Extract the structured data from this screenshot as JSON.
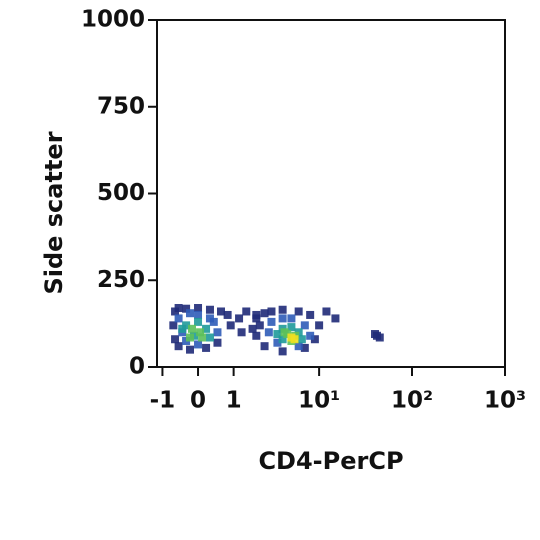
{
  "chart_data": {
    "type": "scatter",
    "xlabel": "CD4-PerCP",
    "ylabel": "Side scatter",
    "xscale": "asinh",
    "xlim": [
      -1.2,
      1000
    ],
    "ylim": [
      0,
      1000
    ],
    "xticks": [
      -1,
      0,
      1,
      {
        "value": 10,
        "label": "10¹"
      },
      {
        "value": 100,
        "label": "10²"
      },
      {
        "value": 1000,
        "label": "10³"
      }
    ],
    "yticks": [
      0,
      250,
      500,
      750,
      1000
    ],
    "series": [
      {
        "color": "#1f2a78",
        "x": [
          -0.6,
          -0.5,
          -0.3,
          0,
          0.3,
          0.6,
          0.8,
          -0.65,
          -0.6,
          -0.5,
          -0.2,
          0.2,
          0.5,
          0.9,
          1.2,
          1.5,
          2,
          1.3,
          1.8,
          2,
          2.5,
          3,
          4,
          6,
          8,
          10,
          12,
          9,
          7,
          4,
          2.5,
          2,
          2.2,
          15,
          40,
          45,
          42
        ],
        "values": [
          160,
          170,
          168,
          170,
          165,
          160,
          150,
          120,
          80,
          60,
          50,
          55,
          70,
          120,
          140,
          160,
          150,
          100,
          110,
          140,
          155,
          160,
          165,
          160,
          150,
          120,
          160,
          80,
          55,
          45,
          60,
          90,
          120,
          140,
          95,
          85,
          90
        ]
      },
      {
        "color": "#2f5cb8",
        "x": [
          -0.5,
          -0.4,
          -0.3,
          0,
          0.3,
          0.5,
          0.4,
          0,
          -0.2,
          3,
          3.5,
          5,
          7,
          8,
          6,
          2.8,
          4
        ],
        "values": [
          140,
          100,
          75,
          150,
          140,
          100,
          130,
          65,
          155,
          130,
          70,
          140,
          120,
          90,
          60,
          100,
          140
        ]
      },
      {
        "color": "#1f9a9a",
        "x": [
          -0.3,
          0,
          0.2,
          -0.1,
          0.3,
          -0.4,
          4,
          5,
          6,
          4,
          3.5,
          6.5
        ],
        "values": [
          120,
          130,
          110,
          90,
          85,
          110,
          110,
          115,
          100,
          80,
          95,
          80
        ]
      },
      {
        "color": "#5cc05a",
        "x": [
          -0.15,
          0.05,
          0.1,
          -0.2,
          4.5,
          5.5,
          5,
          4.2
        ],
        "values": [
          110,
          100,
          85,
          85,
          95,
          90,
          75,
          100
        ]
      },
      {
        "color": "#f0e020",
        "x": [
          5,
          5.4
        ],
        "values": [
          85,
          80
        ]
      }
    ]
  }
}
